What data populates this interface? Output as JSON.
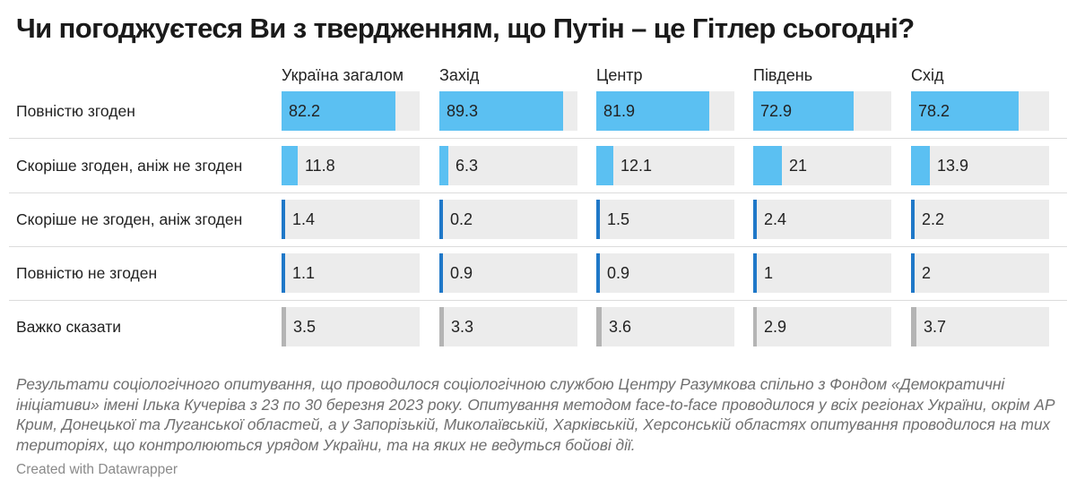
{
  "title": "Чи погоджуєтеся Ви з твердженням, що Путін – це Гітлер сьогодні?",
  "notes": "Результати соціологічного опитування, що проводилося соціологічною службою Центру Разумкова спільно з Фондом «Демократичні ініціативи» імені Ілька Кучеріва з 23 по 30 березня 2023 року. Опитування методом face-to-face проводилося у всіх регіонах України, окрім АР Крим, Донецької та Луганської областей, а у Запорізькій, Миколаївській, Харківській, Херсонській областях опитування проводилося на тих територіях, що контролюються урядом України, та на яких не ведуться бойові дії.",
  "credit": "Created with Datawrapper",
  "colors": {
    "agree": "#5bc0f2",
    "disagree": "#1f78c8",
    "unsure": "#b4b4b4",
    "track": "#ececec"
  },
  "chart_data": {
    "type": "bar",
    "title": "Чи погоджуєтеся Ви з твердженням, що Путін – це Гітлер сьогодні?",
    "xlim": [
      0,
      100
    ],
    "grid": false,
    "categories": [
      "Повністю згоден",
      "Скоріше згоден, аніж не згоден",
      "Скоріше не згоден, аніж згоден",
      "Повністю не згоден",
      "Важко сказати"
    ],
    "category_colors": [
      "agree",
      "agree",
      "disagree",
      "disagree",
      "unsure"
    ],
    "series": [
      {
        "name": "Україна загалом",
        "values": [
          82.2,
          11.8,
          1.4,
          1.1,
          3.5
        ],
        "labels": [
          "82.2",
          "11.8",
          "1.4",
          "1.1",
          "3.5"
        ]
      },
      {
        "name": "Захід",
        "values": [
          89.3,
          6.3,
          0.2,
          0.9,
          3.3
        ],
        "labels": [
          "89.3",
          "6.3",
          "0.2",
          "0.9",
          "3.3"
        ]
      },
      {
        "name": "Центр",
        "values": [
          81.9,
          12.1,
          1.5,
          0.9,
          3.6
        ],
        "labels": [
          "81.9",
          "12.1",
          "1.5",
          "0.9",
          "3.6"
        ]
      },
      {
        "name": "Південь",
        "values": [
          72.9,
          21,
          2.4,
          1,
          2.9
        ],
        "labels": [
          "72.9",
          "21",
          "2.4",
          "1",
          "2.9"
        ]
      },
      {
        "name": "Схід",
        "values": [
          78.2,
          13.9,
          2.2,
          2,
          3.7
        ],
        "labels": [
          "78.2",
          "13.9",
          "2.2",
          "2",
          "3.7"
        ]
      }
    ]
  }
}
